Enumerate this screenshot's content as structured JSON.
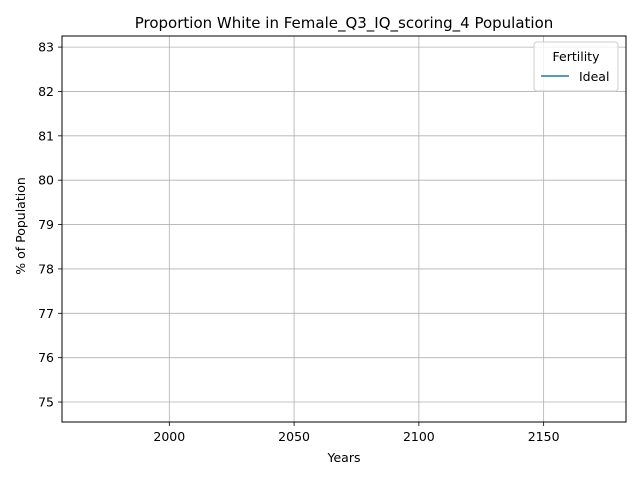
{
  "chart_data": {
    "type": "line",
    "title": "Proportion White in Female_Q3_IQ_scoring_4 Population",
    "xlabel": "Years",
    "ylabel": "% of Population",
    "xlim": [
      1957,
      2183
    ],
    "ylim": [
      74.55,
      83.25
    ],
    "x_ticks": [
      2000,
      2050,
      2100,
      2150
    ],
    "y_ticks": [
      75,
      76,
      77,
      78,
      79,
      80,
      81,
      82,
      83
    ],
    "grid": true,
    "legend": {
      "title": "Fertility",
      "placement": "top-right"
    },
    "series": [
      {
        "name": "Ideal",
        "color": "#1f77b4",
        "x": [],
        "y": []
      }
    ]
  }
}
